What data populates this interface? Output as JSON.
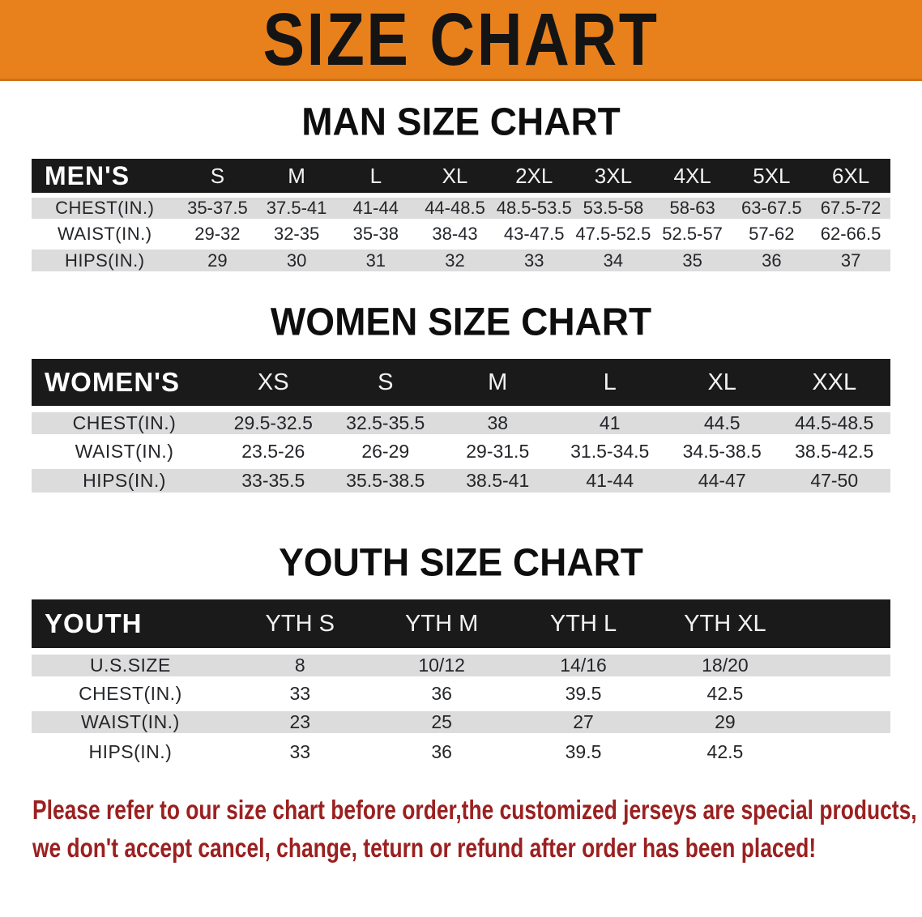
{
  "banner": {
    "title": "SIZE CHART"
  },
  "tables": [
    {
      "title": "MAN SIZE CHART",
      "header_label": "MEN'S",
      "columns": [
        "S",
        "M",
        "L",
        "XL",
        "2XL",
        "3XL",
        "4XL",
        "5XL",
        "6XL"
      ],
      "rows": [
        {
          "label": "CHEST(IN.)",
          "values": [
            "35-37.5",
            "37.5-41",
            "41-44",
            "44-48.5",
            "48.5-53.5",
            "53.5-58",
            "58-63",
            "63-67.5",
            "67.5-72"
          ]
        },
        {
          "label": "WAIST(IN.)",
          "values": [
            "29-32",
            "32-35",
            "35-38",
            "38-43",
            "43-47.5",
            "47.5-52.5",
            "52.5-57",
            "57-62",
            "62-66.5"
          ]
        },
        {
          "label": "HIPS(IN.)",
          "values": [
            "29",
            "30",
            "31",
            "32",
            "33",
            "34",
            "35",
            "36",
            "37"
          ]
        }
      ]
    },
    {
      "title": "WOMEN SIZE CHART",
      "header_label": "WOMEN'S",
      "columns": [
        "XS",
        "S",
        "M",
        "L",
        "XL",
        "XXL"
      ],
      "rows": [
        {
          "label": "CHEST(IN.)",
          "values": [
            "29.5-32.5",
            "32.5-35.5",
            "38",
            "41",
            "44.5",
            "44.5-48.5"
          ]
        },
        {
          "label": "WAIST(IN.)",
          "values": [
            "23.5-26",
            "26-29",
            "29-31.5",
            "31.5-34.5",
            "34.5-38.5",
            "38.5-42.5"
          ]
        },
        {
          "label": "HIPS(IN.)",
          "values": [
            "33-35.5",
            "35.5-38.5",
            "38.5-41",
            "41-44",
            "44-47",
            "47-50"
          ]
        }
      ]
    },
    {
      "title": "YOUTH SIZE CHART",
      "header_label": "YOUTH",
      "columns": [
        "YTH S",
        "YTH M",
        "YTH L",
        "YTH XL"
      ],
      "rows": [
        {
          "label": "U.S.SIZE",
          "values": [
            "8",
            "10/12",
            "14/16",
            "18/20"
          ]
        },
        {
          "label": "CHEST(IN.)",
          "values": [
            "33",
            "36",
            "39.5",
            "42.5"
          ]
        },
        {
          "label": "WAIST(IN.)",
          "values": [
            "23",
            "25",
            "27",
            "29"
          ]
        },
        {
          "label": "HIPS(IN.)",
          "values": [
            "33",
            "36",
            "39.5",
            "42.5"
          ]
        }
      ]
    }
  ],
  "disclaimer": {
    "line1": "Please refer to our size chart before order,the customized jerseys are special products,",
    "line2": "we don't accept cancel, change, teturn or refund after order has been placed!"
  },
  "colors": {
    "banner_bg": "#E8811C",
    "header_row_bg": "#1A1A1A",
    "row_stripe_bg": "#DCDCDC",
    "disclaimer_text": "#9B2020"
  }
}
